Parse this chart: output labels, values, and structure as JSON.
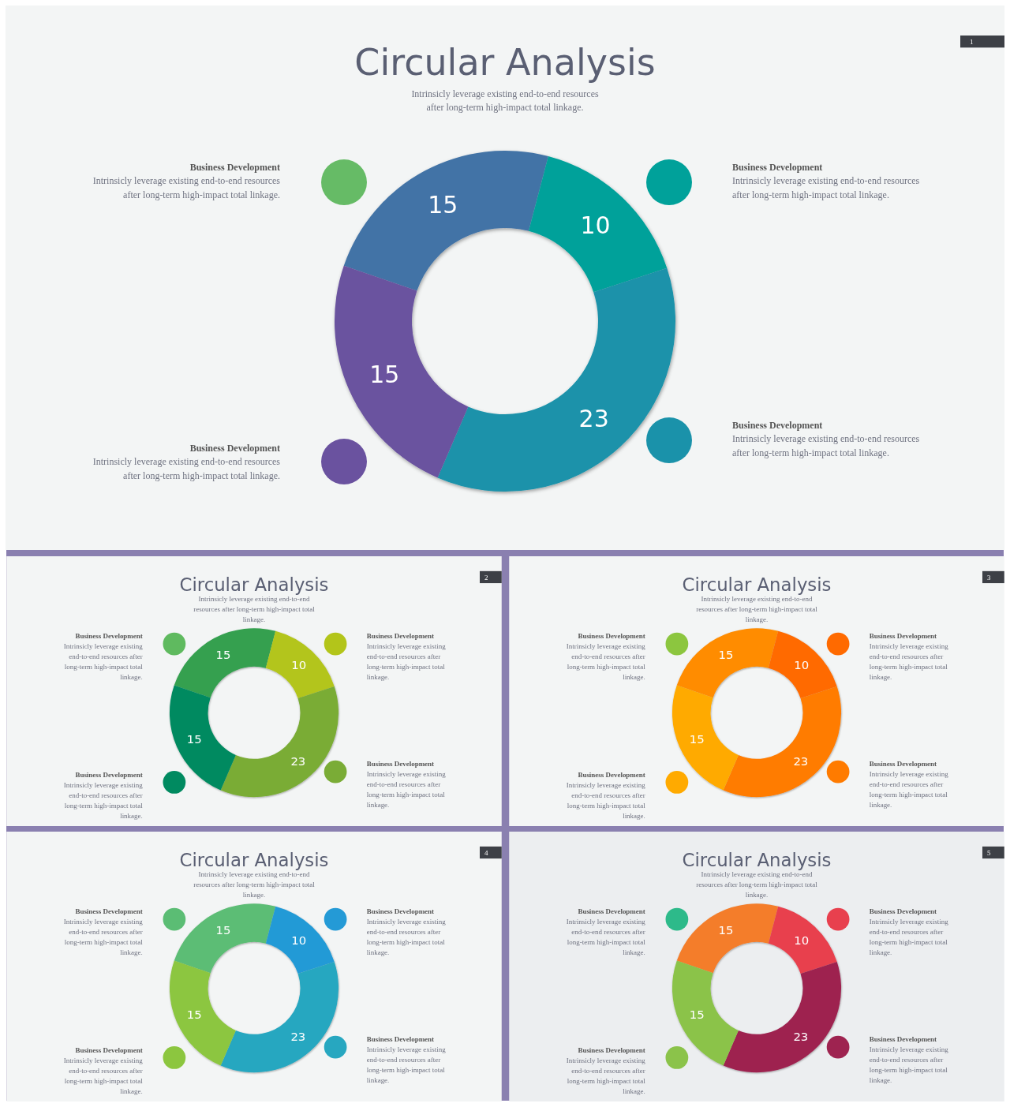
{
  "chart_data": [
    {
      "type": "donut",
      "title": "Circular Analysis",
      "subtitle": "Intrinsicly leverage existing end-to-end resources after long-term high-impact total linkage.",
      "categories": [
        null,
        null,
        null,
        null
      ],
      "values": [
        15,
        10,
        23,
        15
      ],
      "colors": [
        "#4273a6",
        "#00a19a",
        "#1a92aa",
        "#6a529f"
      ],
      "data_labels": true,
      "annotations": [
        "1",
        "Business Development",
        "Intrinsicly leverage existing end-to-end resources after long-term high-impact total linkage.",
        "Business Development",
        "Intrinsicly leverage existing end-to-end resources after long-term high-impact total linkage.",
        "Business Development",
        "Intrinsicly leverage existing end-to-end resources after long-term high-impact total linkage.",
        "Business Development",
        "Intrinsicly leverage existing end-to-end resources after long-term high-impact total linkage."
      ]
    },
    {
      "type": "donut",
      "title": "Circular Analysis",
      "subtitle": "Intrinsicly leverage existing end-to-end resources after long-term high-impact total linkage.",
      "categories": [
        null,
        null,
        null,
        null
      ],
      "values": [
        15,
        10,
        23,
        15
      ],
      "colors": [
        "#34a050",
        "#b3c51a",
        "#7aac36",
        "#008a60"
      ],
      "data_labels": true,
      "annotations": [
        "2",
        "Business Development",
        "Intrinsicly leverage existing end-to-end resources after long-term high-impact total linkage.",
        "Business Development",
        "Intrinsicly leverage existing end-to-end resources after long-term high-impact total linkage.",
        "Business Development",
        "Intrinsicly leverage existing end-to-end resources after long-term high-impact total linkage.",
        "Business Development",
        "Intrinsicly leverage existing end-to-end resources after long-term high-impact total linkage."
      ]
    },
    {
      "type": "donut",
      "title": "Circular Analysis",
      "subtitle": "Intrinsicly leverage existing end-to-end resources after long-term high-impact total linkage.",
      "categories": [
        null,
        null,
        null,
        null
      ],
      "values": [
        15,
        10,
        23,
        15
      ],
      "colors": [
        "#ff8c00",
        "#ff6a00",
        "#ff7b00",
        "#ffaa00"
      ],
      "data_labels": true,
      "annotations": [
        "3",
        "Business Development",
        "Intrinsicly leverage existing end-to-end resources after long-term high-impact total linkage.",
        "Business Development",
        "Intrinsicly leverage existing end-to-end resources after long-term high-impact total linkage.",
        "Business Development",
        "Intrinsicly leverage existing end-to-end resources after long-term high-impact total linkage.",
        "Business Development",
        "Intrinsicly leverage existing end-to-end resources after long-term high-impact total linkage."
      ]
    },
    {
      "type": "donut",
      "title": "Circular Analysis",
      "subtitle": "Intrinsicly leverage existing end-to-end resources after long-term high-impact total linkage.",
      "categories": [
        null,
        null,
        null,
        null
      ],
      "values": [
        15,
        10,
        23,
        15
      ],
      "colors": [
        "#5bbd74",
        "#249ad6",
        "#27a7c0",
        "#8cc63f"
      ],
      "data_labels": true,
      "annotations": [
        "4",
        "Business Development",
        "Intrinsicly leverage existing end-to-end resources after long-term high-impact total linkage.",
        "Business Development",
        "Intrinsicly leverage existing end-to-end resources after long-term high-impact total linkage.",
        "Business Development",
        "Intrinsicly leverage existing end-to-end resources after long-term high-impact total linkage.",
        "Business Development",
        "Intrinsicly leverage existing end-to-end resources after long-term high-impact total linkage."
      ]
    },
    {
      "type": "donut",
      "title": "Circular Analysis",
      "subtitle": "Intrinsicly leverage existing end-to-end resources after long-term high-impact total linkage.",
      "categories": [
        null,
        null,
        null,
        null
      ],
      "values": [
        15,
        10,
        23,
        15
      ],
      "colors": [
        "#f47d2a",
        "#e8404e",
        "#9e2350",
        "#8bc34a"
      ],
      "data_labels": true,
      "annotations": [
        "5",
        "Business Development",
        "Intrinsicly leverage existing end-to-end resources after long-term high-impact total linkage.",
        "Business Development",
        "Intrinsicly leverage existing end-to-end resources after long-term high-impact total linkage.",
        "Business Development",
        "Intrinsicly leverage existing end-to-end resources after long-term high-impact total linkage.",
        "Business Development",
        "Intrinsicly leverage existing end-to-end resources after long-term high-impact total linkage."
      ]
    }
  ]
}
